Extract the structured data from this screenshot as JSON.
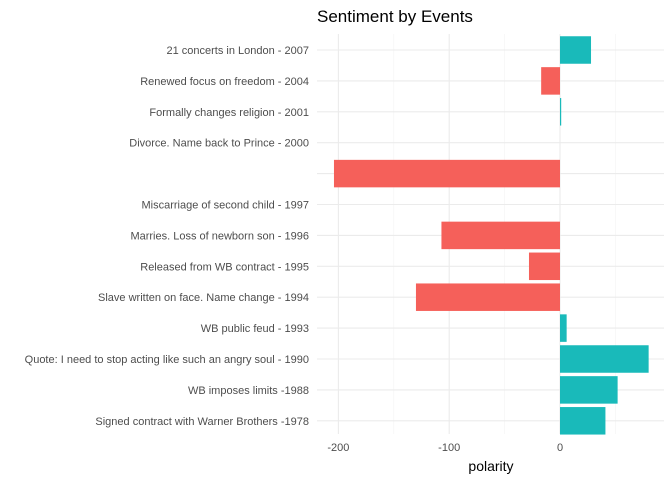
{
  "chart_data": {
    "type": "bar",
    "orientation": "horizontal",
    "title": "Sentiment by Events",
    "xlabel": "polarity",
    "ylabel": "",
    "xlim": [
      -205,
      80
    ],
    "xticks": [
      -200,
      -100,
      0
    ],
    "minor_xticks": [
      -150,
      -50,
      50
    ],
    "grid": true,
    "legend": "none",
    "colors": {
      "positive": "#19BABA",
      "negative": "#F5605A"
    },
    "categories": [
      "21 concerts in London - 2007",
      "Renewed focus on freedom - 2004",
      "Formally changes religion - 2001",
      "Divorce. Name back to Prince - 2000",
      "",
      "Miscarriage of second child - 1997",
      "Marries. Loss of newborn son - 1996",
      "Released from WB contract - 1995",
      "Slave written on face. Name change - 1994",
      "WB public feud - 1993",
      "Quote: I need to stop acting like such an angry soul - 1990",
      "WB imposes limits -1988",
      "Signed contract with Warner Brothers -1978"
    ],
    "values": [
      28,
      -17,
      1,
      0,
      -204,
      0,
      -107,
      -28,
      -130,
      6,
      80,
      52,
      41
    ]
  }
}
